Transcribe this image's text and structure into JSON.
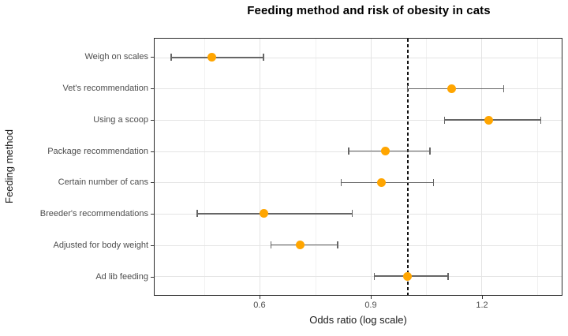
{
  "chart_data": {
    "type": "scatter",
    "subtype": "forest-plot-dot-with-error-bars",
    "title": "Feeding method and risk of obesity in cats",
    "xlabel": "Odds ratio (log scale)",
    "ylabel": "Feeding method",
    "categories": [
      "Weigh on scales",
      "Vet's recommendation",
      "Using a scoop",
      "Package recommendation",
      "Certain number of cans",
      "Breeder's recommendations",
      "Adjusted for body weight",
      "Ad lib feeding"
    ],
    "series": [
      {
        "name": "Odds ratio",
        "values": [
          0.47,
          1.12,
          1.22,
          0.94,
          0.93,
          0.61,
          0.71,
          1.0
        ],
        "ci_low": [
          0.36,
          1.0,
          1.1,
          0.84,
          0.82,
          0.43,
          0.63,
          0.91
        ],
        "ci_high": [
          0.61,
          1.26,
          1.36,
          1.06,
          1.07,
          0.85,
          0.81,
          1.11
        ]
      }
    ],
    "x_ticks": [
      0.6,
      0.9,
      1.2
    ],
    "x_tick_labels": [
      "0.6",
      "0.9",
      "1.2"
    ],
    "x_minor_ticks": [
      0.45,
      0.75,
      1.05,
      1.35
    ],
    "xlim": [
      0.315,
      1.417
    ],
    "reference_line": 1.0,
    "grid": true,
    "legend": false,
    "colors": {
      "point": "#FFA500",
      "error_bar": "#666666",
      "reference_line": "#111111",
      "grid_major": "#E4E4E4",
      "grid_minor": "#F1F1F1",
      "panel_border": "#2B2B2B",
      "tick_label": "#4D4D4D",
      "axis_title": "#1A1A1A",
      "title": "#000000",
      "background": "#FFFFFF"
    }
  }
}
